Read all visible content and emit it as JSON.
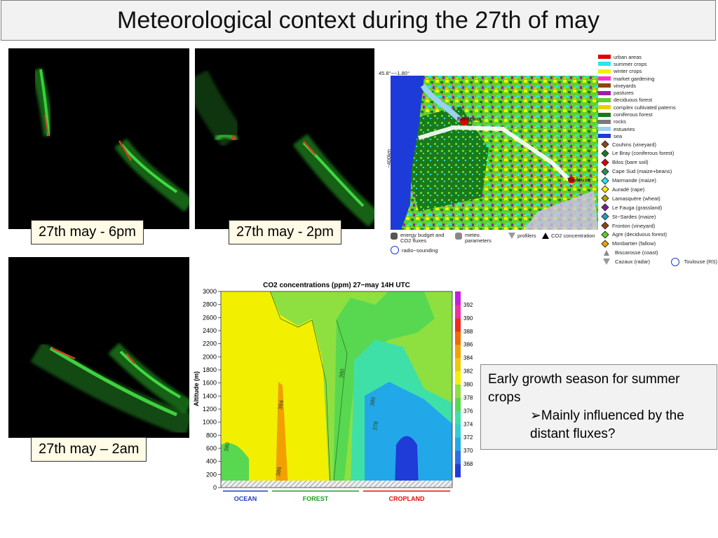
{
  "title": "Meteorological context during the 27th of may",
  "panels": {
    "p6pm": "27th may - 6pm",
    "p2pm": "27th may - 2pm",
    "p2am": "27th may – 2am"
  },
  "note": {
    "line1": "Early growth season for summer crops",
    "line2": "➢Mainly influenced by the distant fluxes?"
  },
  "map": {
    "corner_label": "45.8°−−1.80°",
    "y_label": "−400km",
    "cities": [
      "Bordeaux",
      "Toulouse"
    ],
    "landcover": [
      {
        "label": "urban areas",
        "color": "#e00000"
      },
      {
        "label": "summer crops",
        "color": "#2be6e6"
      },
      {
        "label": "winter crops",
        "color": "#f2f200"
      },
      {
        "label": "market gardening",
        "color": "#ff33cc"
      },
      {
        "label": "vineyards",
        "color": "#8b4513"
      },
      {
        "label": "pastures",
        "color": "#9b1fa8"
      },
      {
        "label": "deciduous forest",
        "color": "#5ed12a"
      },
      {
        "label": "complex cultivated paterns",
        "color": "#e8d000"
      },
      {
        "label": "coniferous forest",
        "color": "#1a7a1a"
      },
      {
        "label": "rocks",
        "color": "#7a7a7a"
      },
      {
        "label": "estuaries",
        "color": "#9ad0f0"
      },
      {
        "label": "sea",
        "color": "#1d3bd8"
      }
    ],
    "sites": [
      {
        "label": "Couhins (vineyard)",
        "color": "#8b4513"
      },
      {
        "label": "Le Bray (coniferous forest)",
        "color": "#1a7a1a"
      },
      {
        "label": "Bilos (bare soil)",
        "color": "#e00000"
      },
      {
        "label": "Cape Sud (maize+beans)",
        "color": "#2e8b57"
      },
      {
        "label": "Marmande (maize)",
        "color": "#2be6e6"
      },
      {
        "label": "Auradé (rape)",
        "color": "#f2f200"
      },
      {
        "label": "Lamasquère (wheat)",
        "color": "#b8a000"
      },
      {
        "label": "Le Fauga (grassland)",
        "color": "#7a1f8a"
      },
      {
        "label": "St−Sardes (maize)",
        "color": "#1ea0c0"
      },
      {
        "label": "Fronton (vineyard)",
        "color": "#8b4513"
      },
      {
        "label": "Agre (deciduous forest)",
        "color": "#5ed12a"
      },
      {
        "label": "Monbartier (fallow)",
        "color": "#f0a000"
      }
    ],
    "instruments": [
      {
        "label": "Biscarosse (coast)",
        "icon": "triangle-icon"
      },
      {
        "label": "Cazaux (radar)",
        "icon": "cone-icon"
      },
      {
        "label": "Toulouse (RS)",
        "icon": "circle-icon"
      }
    ],
    "symbols": {
      "energy": "energy budget and CO2 fluxes",
      "meteo": "meteo. parameters",
      "profilers": "profilers",
      "co2": "CO2 concentration",
      "radio": "radio−sounding"
    }
  },
  "chart_data": {
    "type": "heatmap",
    "title": "CO2 concentrations (ppm) 27−may 14H UTC",
    "ylabel": "Altitude (m)",
    "yticks": [
      0,
      200,
      400,
      600,
      800,
      1000,
      1200,
      1400,
      1600,
      1800,
      2000,
      2200,
      2400,
      2600,
      2800,
      3000
    ],
    "ylim": [
      0,
      3000
    ],
    "colorbar_ticks": [
      368,
      370,
      372,
      374,
      376,
      378,
      380,
      382,
      384,
      386,
      388,
      390,
      392
    ],
    "colorbar_colors": [
      "#1f3bd8",
      "#2a6ee8",
      "#22a8e8",
      "#2fd0d0",
      "#3fe0a8",
      "#58d850",
      "#8ee040",
      "#f2f000",
      "#f2c800",
      "#f2a000",
      "#f26a00",
      "#f22a1a",
      "#f030a0",
      "#c020e0"
    ],
    "contour_labels": [
      "384",
      "380",
      "380",
      "378",
      "386",
      "380"
    ],
    "regions": [
      {
        "label": "OCEAN",
        "color": "#1e3cc8"
      },
      {
        "label": "FOREST",
        "color": "#20a020"
      },
      {
        "label": "CROPLAND",
        "color": "#e01010"
      }
    ]
  }
}
